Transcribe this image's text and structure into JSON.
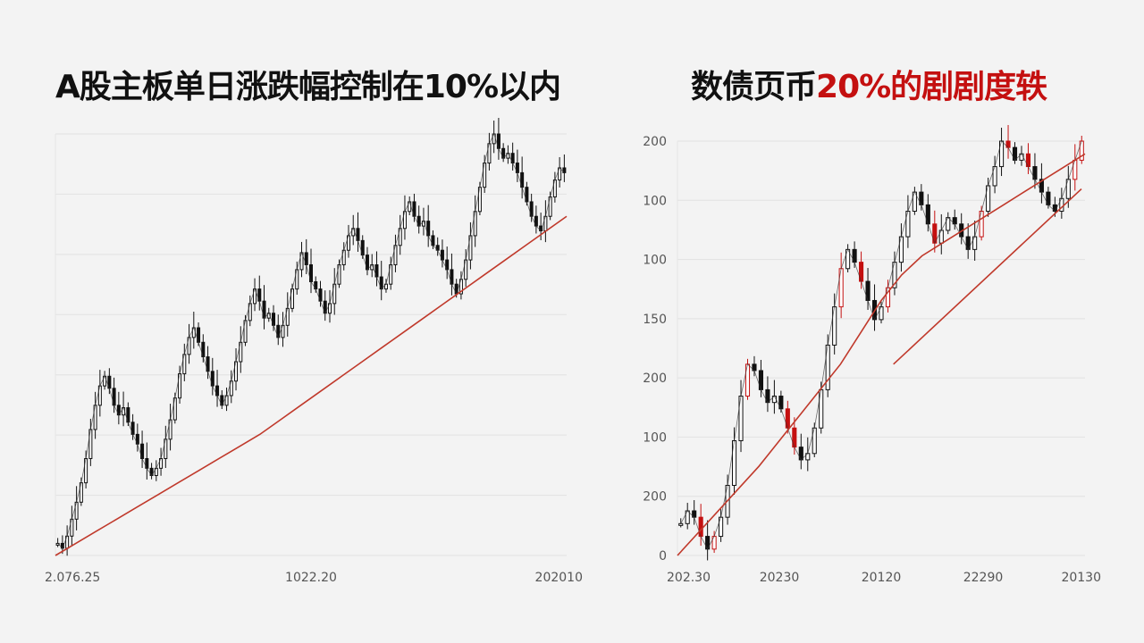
{
  "left": {
    "title": "A股主板单日涨跌幅控制在10%以内",
    "chart_data": {
      "type": "line",
      "title": "A股主板单日涨跌幅控制在10%以内",
      "x_tick_labels": [
        "2.076.25",
        "1022.20",
        "202010"
      ],
      "grid": true,
      "series": [
        {
          "style": "candlestick",
          "color": "#111111",
          "values": [
            0.05,
            0.03,
            0.08,
            0.15,
            0.22,
            0.3,
            0.4,
            0.52,
            0.62,
            0.7,
            0.74,
            0.69,
            0.62,
            0.58,
            0.61,
            0.55,
            0.5,
            0.46,
            0.4,
            0.36,
            0.33,
            0.36,
            0.4,
            0.48,
            0.56,
            0.65,
            0.75,
            0.83,
            0.9,
            0.94,
            0.88,
            0.82,
            0.76,
            0.7,
            0.66,
            0.62,
            0.66,
            0.72,
            0.8,
            0.88,
            0.97,
            1.04,
            1.1,
            1.05,
            0.98,
            1.0,
            0.95,
            0.9,
            0.95,
            1.02,
            1.1,
            1.18,
            1.25,
            1.2,
            1.13,
            1.1,
            1.05,
            1.0,
            1.04,
            1.12,
            1.2,
            1.26,
            1.32,
            1.35,
            1.3,
            1.24,
            1.18,
            1.2,
            1.15,
            1.1,
            1.12,
            1.2,
            1.28,
            1.35,
            1.42,
            1.46,
            1.4,
            1.36,
            1.38,
            1.32,
            1.28,
            1.26,
            1.22,
            1.18,
            1.12,
            1.08,
            1.14,
            1.22,
            1.32,
            1.42,
            1.52,
            1.62,
            1.7,
            1.74,
            1.68,
            1.64,
            1.66,
            1.62,
            1.58,
            1.52,
            1.46,
            1.4,
            1.36,
            1.34,
            1.4,
            1.48,
            1.55,
            1.6,
            1.58
          ]
        },
        {
          "style": "moving-average",
          "color": "#c0392b",
          "values": [
            0.0,
            0.05,
            0.1,
            0.15,
            0.2,
            0.25,
            0.3,
            0.35,
            0.4,
            0.45,
            0.5,
            0.56,
            0.62,
            0.68,
            0.74,
            0.8,
            0.86,
            0.92,
            0.98,
            1.04,
            1.1,
            1.16,
            1.22,
            1.28,
            1.34,
            1.4
          ]
        }
      ]
    }
  },
  "right": {
    "title_part1": "数债页币",
    "title_part2": "20%的剧剧度轶",
    "chart_data": {
      "type": "line",
      "title": "数债页币20%的剧剧度轶",
      "y_tick_labels": [
        "200",
        "100",
        "100",
        "150",
        "200",
        "100",
        "200",
        "0"
      ],
      "x_tick_labels": [
        "202.30",
        "20230",
        "20120",
        "22290",
        "20130"
      ],
      "grid": true,
      "series": [
        {
          "style": "candlestick",
          "color": "#111111",
          "accent_color": "#c41010",
          "values": [
            0.1,
            0.14,
            0.12,
            0.06,
            0.02,
            0.06,
            0.12,
            0.22,
            0.36,
            0.5,
            0.6,
            0.58,
            0.52,
            0.48,
            0.5,
            0.46,
            0.4,
            0.34,
            0.3,
            0.32,
            0.4,
            0.52,
            0.66,
            0.78,
            0.9,
            0.96,
            0.92,
            0.86,
            0.8,
            0.74,
            0.78,
            0.84,
            0.92,
            1.0,
            1.08,
            1.14,
            1.1,
            1.04,
            0.98,
            1.02,
            1.06,
            1.04,
            1.0,
            0.96,
            1.0,
            1.08,
            1.16,
            1.22,
            1.3,
            1.28,
            1.24,
            1.26,
            1.22,
            1.18,
            1.14,
            1.1,
            1.08,
            1.12,
            1.18,
            1.24,
            1.3
          ]
        },
        {
          "style": "moving-average",
          "color": "#c0392b",
          "values": [
            0.0,
            0.07,
            0.14,
            0.21,
            0.28,
            0.36,
            0.44,
            0.52,
            0.6,
            0.7,
            0.8,
            0.88,
            0.94,
            0.98,
            1.02,
            1.06,
            1.1,
            1.14,
            1.18,
            1.22,
            1.26
          ]
        },
        {
          "style": "trend-line",
          "color": "#c0392b",
          "values": [
            0.6,
            1.15
          ]
        }
      ]
    }
  }
}
